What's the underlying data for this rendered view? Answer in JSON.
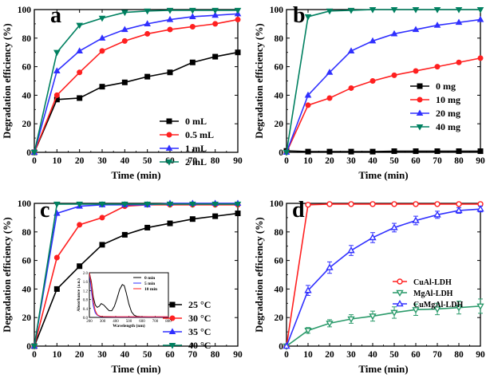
{
  "chart_data": [
    {
      "panel": "a",
      "type": "line",
      "ylabel": "Degradation efficiency (%)",
      "xlabel": "Time (min)",
      "xlim": [
        0,
        90
      ],
      "ylim": [
        0,
        100
      ],
      "xticks": [
        "0",
        "10",
        "20",
        "30",
        "40",
        "50",
        "60",
        "70",
        "80",
        "90"
      ],
      "yticks": [
        "0",
        "20",
        "40",
        "60",
        "80",
        "100"
      ],
      "legend_position": "center-right",
      "series": [
        {
          "name": "0 mL",
          "color": "#000000",
          "marker": "square",
          "x": [
            0,
            10,
            20,
            30,
            40,
            50,
            60,
            70,
            80,
            90
          ],
          "y": [
            0,
            37,
            38,
            46,
            49,
            53,
            56,
            63,
            67,
            70
          ]
        },
        {
          "name": "0.5 mL",
          "color": "#ff2020",
          "marker": "circle",
          "x": [
            0,
            10,
            20,
            30,
            40,
            50,
            60,
            70,
            80,
            90
          ],
          "y": [
            0,
            40,
            56,
            71,
            78,
            83,
            86,
            88,
            90,
            93
          ]
        },
        {
          "name": "1 mL",
          "color": "#3030ff",
          "marker": "triangle-up",
          "x": [
            0,
            10,
            20,
            30,
            40,
            50,
            60,
            70,
            80,
            90
          ],
          "y": [
            0,
            57,
            71,
            80,
            86,
            90,
            93,
            95,
            96,
            97
          ]
        },
        {
          "name": "2 mL",
          "color": "#008060",
          "marker": "triangle-down",
          "x": [
            0,
            10,
            20,
            30,
            40,
            50,
            60,
            70,
            80,
            90
          ],
          "y": [
            0,
            70,
            89,
            94,
            98,
            99,
            99.5,
            99.5,
            99.5,
            99.5
          ]
        }
      ]
    },
    {
      "panel": "b",
      "type": "line",
      "ylabel": "Degradation efficiency (%)",
      "xlabel": "Time (min)",
      "xlim": [
        0,
        90
      ],
      "ylim": [
        0,
        100
      ],
      "xticks": [
        "0",
        "10",
        "20",
        "30",
        "40",
        "50",
        "60",
        "70",
        "80",
        "90"
      ],
      "yticks": [
        "0",
        "20",
        "40",
        "60",
        "80",
        "100"
      ],
      "legend_position": "center-right",
      "series": [
        {
          "name": "0 mg",
          "color": "#000000",
          "marker": "square",
          "x": [
            0,
            10,
            20,
            30,
            40,
            50,
            60,
            70,
            80,
            90
          ],
          "y": [
            1,
            0.5,
            0.5,
            0.5,
            0.5,
            0.8,
            0.8,
            0.8,
            0.8,
            0.8
          ]
        },
        {
          "name": "10 mg",
          "color": "#ff2020",
          "marker": "circle",
          "x": [
            0,
            10,
            20,
            30,
            40,
            50,
            60,
            70,
            80,
            90
          ],
          "y": [
            0,
            33,
            38,
            45,
            50,
            54,
            57,
            60,
            63,
            66
          ]
        },
        {
          "name": "20 mg",
          "color": "#3030ff",
          "marker": "triangle-up",
          "x": [
            0,
            10,
            20,
            30,
            40,
            50,
            60,
            70,
            80,
            90
          ],
          "y": [
            0,
            40,
            56,
            71,
            78,
            83,
            86,
            89,
            91,
            93
          ]
        },
        {
          "name": "40 mg",
          "color": "#008060",
          "marker": "triangle-down",
          "x": [
            0,
            10,
            20,
            30,
            40,
            50,
            60,
            70,
            80,
            90
          ],
          "y": [
            0,
            95,
            99,
            99.5,
            100,
            100,
            100,
            100,
            100,
            100
          ]
        }
      ]
    },
    {
      "panel": "c",
      "type": "line",
      "ylabel": "Degradation efficiency (%)",
      "xlabel": "Time (min)",
      "xlim": [
        0,
        90
      ],
      "ylim": [
        0,
        100
      ],
      "xticks": [
        "0",
        "10",
        "20",
        "30",
        "40",
        "50",
        "60",
        "70",
        "80",
        "90"
      ],
      "yticks": [
        "0",
        "20",
        "40",
        "60",
        "80",
        "100"
      ],
      "legend_position": "center-right",
      "series": [
        {
          "name": "25 °C",
          "color": "#000000",
          "marker": "square",
          "x": [
            0,
            10,
            20,
            30,
            40,
            50,
            60,
            70,
            80,
            90
          ],
          "y": [
            0,
            40,
            56,
            71,
            78,
            83,
            86,
            89,
            91,
            93
          ]
        },
        {
          "name": "30 °C",
          "color": "#ff2020",
          "marker": "circle",
          "x": [
            0,
            10,
            20,
            30,
            40,
            50,
            60,
            70,
            80,
            90
          ],
          "y": [
            0,
            62,
            85,
            90,
            98,
            99,
            99,
            99,
            99,
            99
          ]
        },
        {
          "name": "35 °C",
          "color": "#3030ff",
          "marker": "triangle-up",
          "x": [
            0,
            10,
            20,
            30,
            40,
            50,
            60,
            70,
            80,
            90
          ],
          "y": [
            0,
            93,
            98,
            99,
            99,
            99,
            100,
            100,
            100,
            100
          ]
        },
        {
          "name": "40 °C",
          "color": "#008060",
          "marker": "triangle-down",
          "x": [
            0,
            10,
            20,
            30,
            40,
            50,
            60,
            70,
            80,
            90
          ],
          "y": [
            0,
            99.5,
            99.5,
            99.5,
            99.5,
            99.5,
            99.5,
            99.5,
            99.5,
            99.5
          ]
        }
      ],
      "inset": {
        "type": "line",
        "xlabel": "Wavelength (nm)",
        "ylabel": "Absorbance (a.u.)",
        "xlim": [
          200,
          800
        ],
        "ylim": [
          0,
          2.0
        ],
        "xticks": [
          "200",
          "300",
          "400",
          "500",
          "600",
          "700",
          "800"
        ],
        "yticks": [
          "0.0",
          "0.4",
          "0.8",
          "1.2",
          "1.6",
          "2.0"
        ],
        "series": [
          {
            "name": "0 min",
            "color": "#000000",
            "x": [
              200,
              215,
              230,
              245,
              260,
              275,
              290,
              310,
              330,
              350,
              370,
              390,
              410,
              430,
              450,
              465,
              480,
              500,
              520,
              540,
              560,
              600,
              650,
              700,
              800
            ],
            "y": [
              2.0,
              1.6,
              0.9,
              0.55,
              0.45,
              0.5,
              0.62,
              0.55,
              0.42,
              0.3,
              0.3,
              0.5,
              0.85,
              1.25,
              1.47,
              1.42,
              1.1,
              0.6,
              0.25,
              0.1,
              0.05,
              0.03,
              0.02,
              0.02,
              0.02
            ]
          },
          {
            "name": "5 min",
            "color": "#3030ff",
            "x": [
              200,
              215,
              230,
              245,
              260,
              280,
              300,
              400,
              500,
              600,
              700,
              800
            ],
            "y": [
              2.0,
              1.2,
              0.5,
              0.2,
              0.1,
              0.05,
              0.03,
              0.02,
              0.02,
              0.02,
              0.02,
              0.02
            ]
          },
          {
            "name": "10 min",
            "color": "#ff2020",
            "x": [
              200,
              215,
              230,
              245,
              260,
              280,
              300,
              400,
              500,
              600,
              700,
              800
            ],
            "y": [
              2.0,
              1.5,
              0.7,
              0.3,
              0.12,
              0.06,
              0.04,
              0.03,
              0.03,
              0.03,
              0.03,
              0.03
            ]
          }
        ]
      }
    },
    {
      "panel": "d",
      "type": "line",
      "ylabel": "Degradation efficiency (%)",
      "xlabel": "Time (min)",
      "xlim": [
        0,
        90
      ],
      "ylim": [
        0,
        100
      ],
      "xticks": [
        "0",
        "10",
        "20",
        "30",
        "40",
        "50",
        "60",
        "70",
        "80",
        "90"
      ],
      "yticks": [
        "0",
        "20",
        "40",
        "60",
        "80",
        "100"
      ],
      "legend_position": "center-right",
      "error_bars": true,
      "series": [
        {
          "name": "CuAl-LDH",
          "color": "#ff2020",
          "marker": "circle-open",
          "x": [
            0,
            10,
            20,
            30,
            40,
            50,
            60,
            70,
            80,
            90
          ],
          "y": [
            0,
            99,
            99.5,
            99.5,
            99.5,
            99.5,
            99.5,
            99.5,
            99.5,
            99.5
          ],
          "err": [
            0,
            0.5,
            0.5,
            0.5,
            0.5,
            0.5,
            0.5,
            0.5,
            0.5,
            0.5
          ]
        },
        {
          "name": "MgAl-LDH",
          "color": "#2a9a6a",
          "marker": "triangle-down-open",
          "x": [
            0,
            10,
            20,
            30,
            40,
            50,
            60,
            70,
            80,
            90
          ],
          "y": [
            0,
            11,
            16,
            19,
            21,
            23.5,
            25.5,
            26,
            27,
            28
          ],
          "err": [
            0,
            2,
            2.5,
            3,
            3.5,
            4,
            4,
            4,
            4.5,
            5
          ]
        },
        {
          "name": "CuMgAl-LDH",
          "color": "#3030ff",
          "marker": "triangle-up-open",
          "x": [
            0,
            10,
            20,
            30,
            40,
            50,
            60,
            70,
            80,
            90
          ],
          "y": [
            0,
            39,
            55,
            67,
            76,
            83,
            88,
            92,
            95,
            96
          ],
          "err": [
            0,
            3.5,
            4,
            3.5,
            3.5,
            3,
            3,
            2.5,
            2,
            2
          ]
        }
      ]
    }
  ]
}
